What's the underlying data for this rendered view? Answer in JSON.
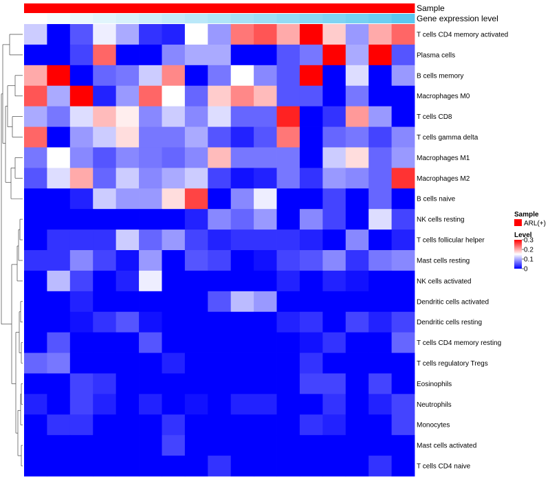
{
  "chart_data": {
    "type": "heatmap",
    "annotations": {
      "sample_label": "Sample",
      "expression_label": "Gene expression level",
      "sample_color": "#ff0000",
      "expression_gradient": [
        "#ffffff",
        "#5bc8f0"
      ]
    },
    "rows": [
      "T cells CD4 memory activated",
      "Plasma cells",
      "B cells memory",
      "Macrophages M0",
      "T cells CD8",
      "T cells gamma delta",
      "Macrophages M1",
      "Macrophages M2",
      "B cells naive",
      "NK cells resting",
      "T cells follicular helper",
      "Mast cells resting",
      "NK cells activated",
      "Dendritic cells activated",
      "Dendritic cells resting",
      "T cells CD4 memory resting",
      "T cells regulatory  Tregs",
      "Eosinophils",
      "Neutrophils",
      "Monocytes",
      "Mast cells activated",
      "T cells CD4 naive"
    ],
    "values": [
      [
        0.12,
        0.0,
        0.05,
        0.14,
        0.1,
        0.03,
        0.02,
        0.15,
        0.09,
        0.23,
        0.25,
        0.2,
        0.31,
        0.18,
        0.09,
        0.2,
        0.24
      ],
      [
        0.0,
        0.0,
        0.04,
        0.24,
        0.0,
        0.0,
        0.08,
        0.1,
        0.1,
        0.0,
        0.0,
        0.05,
        0.07,
        0.31,
        0.1,
        0.3,
        0.05
      ],
      [
        0.2,
        0.31,
        0.0,
        0.06,
        0.07,
        0.12,
        0.22,
        0.0,
        0.07,
        0.15,
        0.08,
        0.05,
        0.31,
        0.0,
        0.13,
        0.0,
        0.09
      ],
      [
        0.25,
        0.1,
        0.31,
        0.02,
        0.09,
        0.24,
        0.15,
        0.06,
        0.18,
        0.22,
        0.19,
        0.05,
        0.05,
        0.0,
        0.07,
        0.0,
        0.0
      ],
      [
        0.1,
        0.07,
        0.13,
        0.19,
        0.16,
        0.08,
        0.12,
        0.08,
        0.13,
        0.06,
        0.06,
        0.28,
        0.0,
        0.03,
        0.21,
        0.09,
        0.0
      ],
      [
        0.24,
        0.0,
        0.09,
        0.12,
        0.17,
        0.07,
        0.07,
        0.1,
        0.05,
        0.02,
        0.05,
        0.23,
        0.0,
        0.06,
        0.07,
        0.04,
        0.08
      ],
      [
        0.07,
        0.15,
        0.08,
        0.05,
        0.08,
        0.07,
        0.06,
        0.08,
        0.19,
        0.07,
        0.07,
        0.07,
        0.0,
        0.12,
        0.17,
        0.06,
        0.09
      ],
      [
        0.05,
        0.13,
        0.2,
        0.06,
        0.12,
        0.08,
        0.1,
        0.12,
        0.04,
        0.01,
        0.02,
        0.07,
        0.03,
        0.09,
        0.08,
        0.06,
        0.27
      ],
      [
        0.0,
        0.0,
        0.02,
        0.12,
        0.09,
        0.09,
        0.17,
        0.26,
        0.0,
        0.08,
        0.14,
        0.0,
        0.0,
        0.04,
        0.0,
        0.06,
        0.0
      ],
      [
        0.0,
        0.0,
        0.0,
        0.0,
        0.0,
        0.0,
        0.0,
        0.02,
        0.08,
        0.06,
        0.09,
        0.0,
        0.08,
        0.04,
        0.0,
        0.13,
        0.04
      ],
      [
        0.0,
        0.03,
        0.03,
        0.03,
        0.12,
        0.06,
        0.09,
        0.04,
        0.02,
        0.03,
        0.03,
        0.03,
        0.02,
        0.0,
        0.08,
        0.0,
        0.02
      ],
      [
        0.03,
        0.03,
        0.08,
        0.04,
        0.01,
        0.09,
        0.0,
        0.05,
        0.04,
        0.0,
        0.01,
        0.04,
        0.05,
        0.08,
        0.03,
        0.07,
        0.08
      ],
      [
        0.0,
        0.11,
        0.04,
        0.0,
        0.02,
        0.14,
        0.0,
        0.0,
        0.0,
        0.0,
        0.0,
        0.02,
        0.0,
        0.02,
        0.01,
        0.0,
        0.0
      ],
      [
        0.0,
        0.0,
        0.02,
        0.0,
        0.0,
        0.0,
        0.0,
        0.0,
        0.05,
        0.11,
        0.09,
        0.0,
        0.0,
        0.0,
        0.0,
        0.0,
        0.0
      ],
      [
        0.0,
        0.0,
        0.01,
        0.03,
        0.05,
        0.01,
        0.0,
        0.0,
        0.0,
        0.0,
        0.0,
        0.02,
        0.03,
        0.0,
        0.04,
        0.02,
        0.04
      ],
      [
        0.0,
        0.05,
        0.0,
        0.0,
        0.0,
        0.05,
        0.0,
        0.0,
        0.0,
        0.0,
        0.0,
        0.0,
        0.01,
        0.03,
        0.0,
        0.0,
        0.06
      ],
      [
        0.06,
        0.07,
        0.0,
        0.0,
        0.0,
        0.0,
        0.02,
        0.0,
        0.0,
        0.0,
        0.0,
        0.0,
        0.03,
        0.0,
        0.0,
        0.0,
        0.0
      ],
      [
        0.0,
        0.0,
        0.04,
        0.03,
        0.0,
        0.0,
        0.0,
        0.0,
        0.0,
        0.0,
        0.0,
        0.0,
        0.04,
        0.04,
        0.0,
        0.04,
        0.0
      ],
      [
        0.02,
        0.0,
        0.04,
        0.02,
        0.0,
        0.02,
        0.0,
        0.01,
        0.0,
        0.02,
        0.02,
        0.0,
        0.0,
        0.03,
        0.0,
        0.02,
        0.04
      ],
      [
        0.0,
        0.03,
        0.03,
        0.0,
        0.0,
        0.0,
        0.03,
        0.0,
        0.0,
        0.0,
        0.0,
        0.0,
        0.03,
        0.02,
        0.0,
        0.0,
        0.04
      ],
      [
        0.0,
        0.0,
        0.0,
        0.0,
        0.0,
        0.0,
        0.04,
        0.0,
        0.0,
        0.0,
        0.0,
        0.0,
        0.0,
        0.0,
        0.0,
        0.0,
        0.0
      ],
      [
        0.0,
        0.0,
        0.0,
        0.0,
        0.0,
        0.0,
        0.0,
        0.0,
        0.03,
        0.0,
        0.0,
        0.0,
        0.0,
        0.0,
        0.0,
        0.03,
        0.0
      ]
    ],
    "expression_level": [
      0.0,
      0.06,
      0.12,
      0.18,
      0.24,
      0.3,
      0.36,
      0.42,
      0.48,
      0.54,
      0.6,
      0.66,
      0.72,
      0.78,
      0.84,
      0.9,
      1.0
    ],
    "color_scale": {
      "min": 0,
      "mid": 0.15,
      "max": 0.3,
      "low_color": "#0000ff",
      "mid_color": "#ffffff",
      "high_color": "#ff0000"
    },
    "legend": {
      "sample_title": "Sample",
      "sample_item": "ARL(+)",
      "level_title": "Level",
      "level_ticks": [
        "0.3",
        "0.2",
        "0.1",
        "0"
      ],
      "level_tick_values": [
        0.3,
        0.2,
        0.1,
        0
      ],
      "placement": "right"
    }
  }
}
